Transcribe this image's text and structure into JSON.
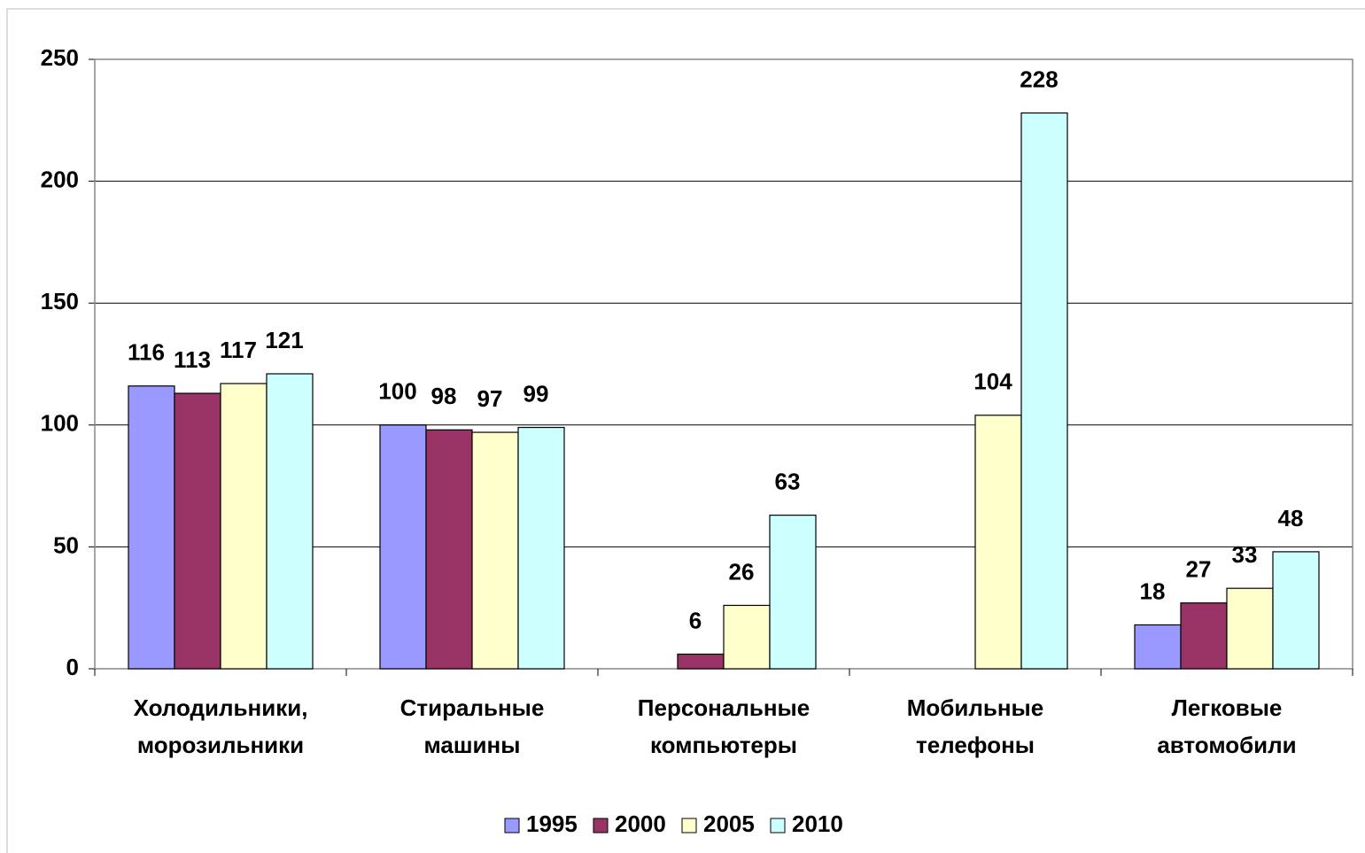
{
  "chart_data": {
    "type": "bar",
    "categories": [
      "Холодильники, морозильники",
      "Стиральные машины",
      "Персональные компьютеры",
      "Мобильные телефоны",
      "Легковые автомобили"
    ],
    "series": [
      {
        "name": "1995",
        "color": "#9999ff",
        "values": [
          116,
          100,
          null,
          null,
          18
        ]
      },
      {
        "name": "2000",
        "color": "#993366",
        "values": [
          113,
          98,
          6,
          null,
          27
        ]
      },
      {
        "name": "2005",
        "color": "#ffffcc",
        "values": [
          117,
          97,
          26,
          104,
          33
        ]
      },
      {
        "name": "2010",
        "color": "#ccffff",
        "values": [
          121,
          99,
          63,
          228,
          48
        ]
      }
    ],
    "ylim": [
      0,
      250
    ],
    "yticks": [
      0,
      50,
      100,
      150,
      200,
      250
    ],
    "grid": true,
    "legend": "bottom"
  }
}
